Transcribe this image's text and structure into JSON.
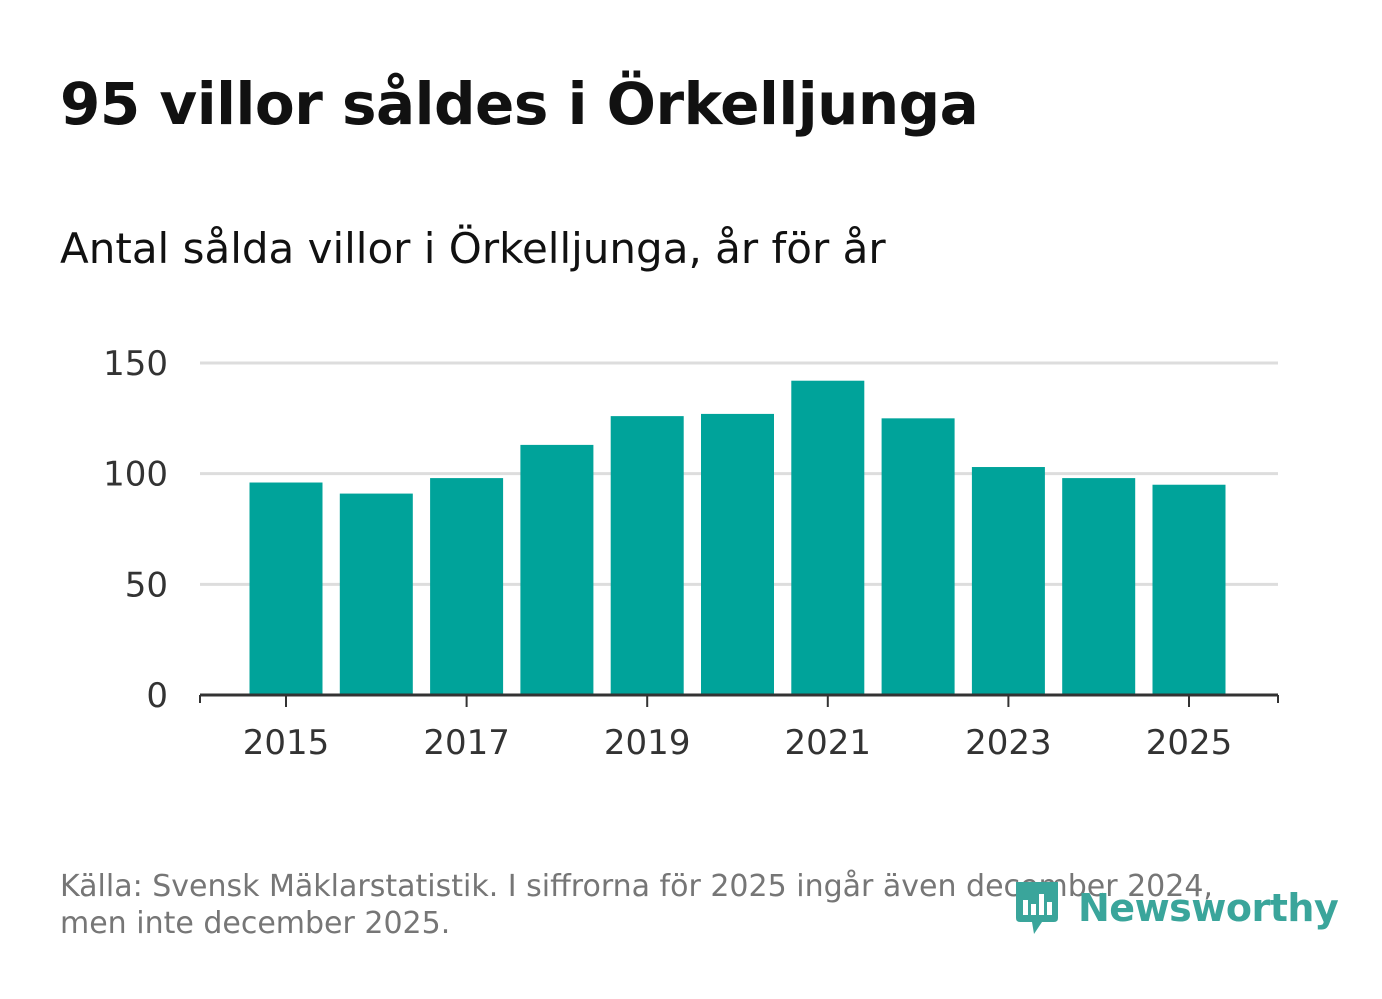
{
  "title": "95 villor såldes i Örkelljunga",
  "subtitle": "Antal sålda villor i Örkelljunga, år för år",
  "source": "Källa: Svensk Mäklarstatistik. I siffrorna för 2025 ingår även december 2024, men inte december 2025.",
  "brand": {
    "name": "Newsworthy",
    "icon": "newsworthy-logo-icon",
    "color": "#3aa59b"
  },
  "colors": {
    "bar": "#00a39a",
    "grid": "#dddddd",
    "axis": "#333333"
  },
  "chart_data": {
    "type": "bar",
    "title": "95 villor såldes i Örkelljunga",
    "subtitle": "Antal sålda villor i Örkelljunga, år för år",
    "xlabel": "",
    "ylabel": "",
    "categories": [
      "2015",
      "2016",
      "2017",
      "2018",
      "2019",
      "2020",
      "2021",
      "2022",
      "2023",
      "2024",
      "2025"
    ],
    "values": [
      96,
      91,
      98,
      113,
      126,
      127,
      142,
      125,
      103,
      98,
      95
    ],
    "ylim": [
      0,
      150
    ],
    "yticks": [
      0,
      50,
      100,
      150
    ],
    "xticks": [
      "2015",
      "2017",
      "2019",
      "2021",
      "2023",
      "2025"
    ],
    "grid": true,
    "legend": "none"
  }
}
